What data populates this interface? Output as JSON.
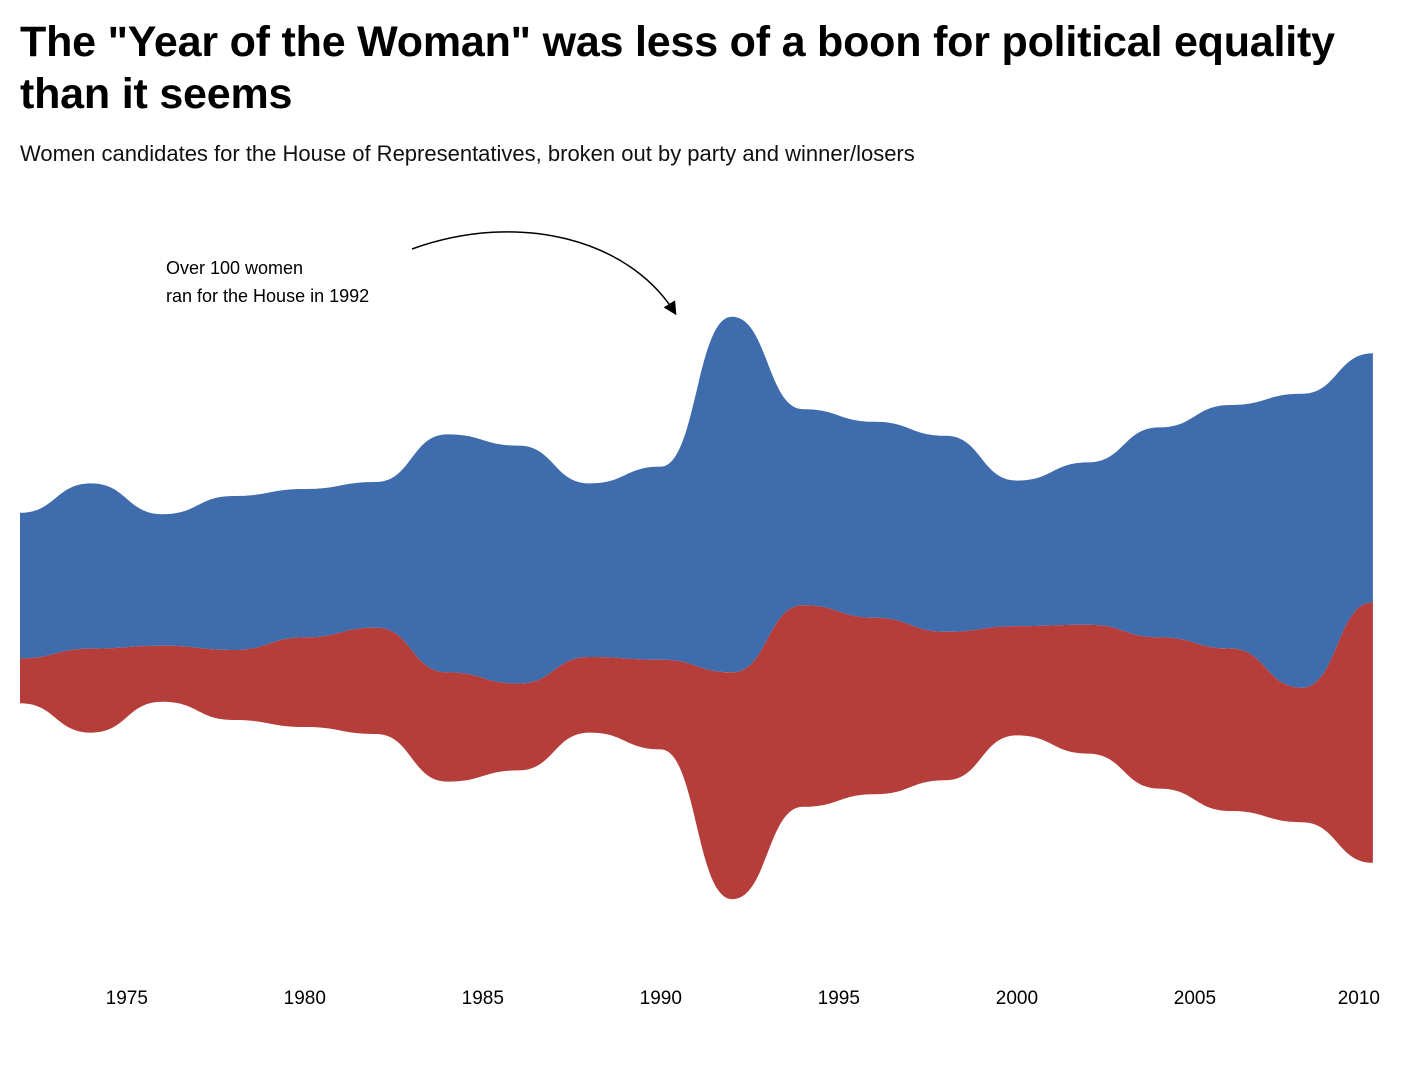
{
  "title": "The \"Year of the Woman\" was less of a boon for political equality than it seems",
  "subtitle": "Women candidates for the House of Representatives, broken out by party and winner/losers",
  "annotation": {
    "line1": "Over 100 women",
    "line2": "ran for the House in 1992"
  },
  "colors": {
    "democrat": "#3f6cad",
    "republican": "#b53d3a"
  },
  "chart_data": {
    "type": "area",
    "layout": "streamgraph",
    "x_tick_labels": [
      "1975",
      "1980",
      "1985",
      "1990",
      "1995",
      "2000",
      "2005",
      "2010"
    ],
    "xlim": [
      1972,
      2010.2
    ],
    "x": [
      1972,
      1974,
      1976,
      1978,
      1980,
      1982,
      1984,
      1986,
      1988,
      1990,
      1992,
      1994,
      1996,
      1998,
      2000,
      2002,
      2004,
      2006,
      2008,
      2010
    ],
    "series": [
      {
        "color": "#3f6cad",
        "values": [
          52,
          59,
          47,
          55,
          53,
          52,
          85,
          85,
          62,
          69,
          127,
          70,
          70,
          70,
          52,
          58,
          75,
          87,
          105,
          89
        ]
      },
      {
        "color": "#b53d3a",
        "values": [
          16,
          30,
          20,
          25,
          32,
          38,
          39,
          31,
          27,
          32,
          81,
          72,
          63,
          53,
          39,
          46,
          54,
          58,
          48,
          93
        ]
      }
    ]
  }
}
